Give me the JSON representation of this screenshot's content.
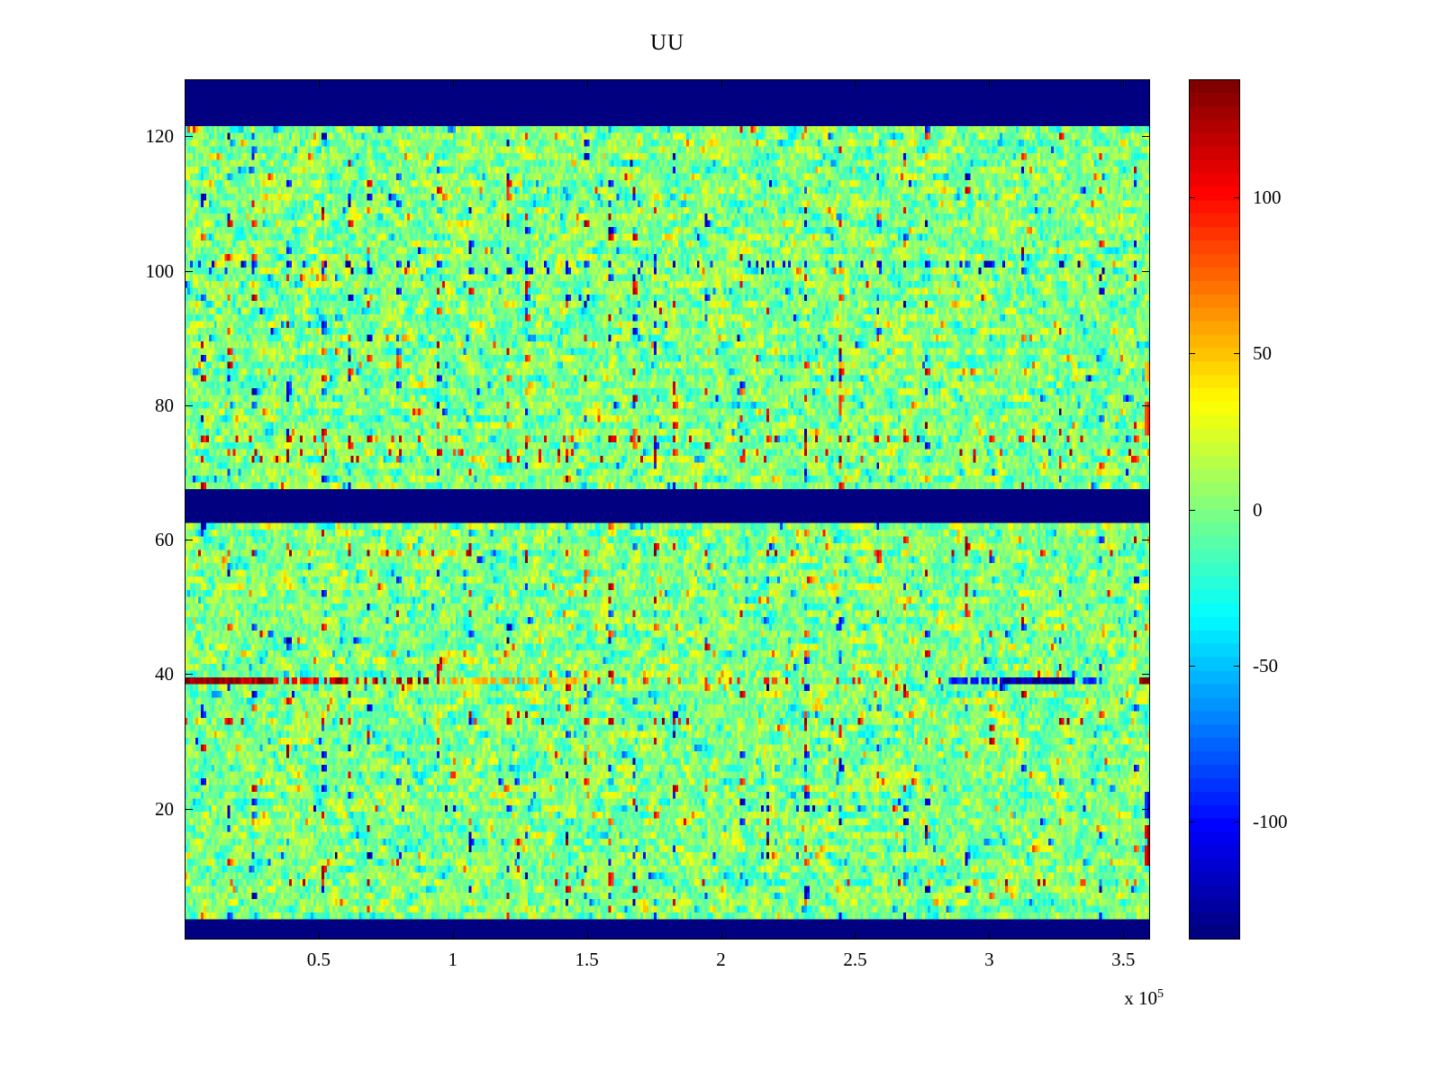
{
  "chart_data": {
    "type": "heatmap",
    "title": "UU",
    "x_axis": {
      "lim": [
        0,
        360000
      ],
      "ticks": [
        {
          "value": 50000,
          "label": "0.5"
        },
        {
          "value": 100000,
          "label": "1"
        },
        {
          "value": 150000,
          "label": "1.5"
        },
        {
          "value": 200000,
          "label": "2"
        },
        {
          "value": 250000,
          "label": "2.5"
        },
        {
          "value": 300000,
          "label": "3"
        },
        {
          "value": 350000,
          "label": "3.5"
        }
      ],
      "multiplier_prefix": "x 10",
      "multiplier_exponent": "5"
    },
    "y_axis": {
      "lim": [
        0.5,
        128.5
      ],
      "ticks": [
        {
          "value": 20,
          "label": "20"
        },
        {
          "value": 40,
          "label": "40"
        },
        {
          "value": 60,
          "label": "60"
        },
        {
          "value": 80,
          "label": "80"
        },
        {
          "value": 100,
          "label": "100"
        },
        {
          "value": 120,
          "label": "120"
        }
      ]
    },
    "colorbar": {
      "lim": [
        -138,
        138
      ],
      "levels": 64,
      "colormap": "jet",
      "ticks": [
        {
          "value": 100,
          "label": "100"
        },
        {
          "value": 50,
          "label": "50"
        },
        {
          "value": 0,
          "label": "0"
        },
        {
          "value": -50,
          "label": "-50"
        },
        {
          "value": -100,
          "label": "-100"
        }
      ]
    },
    "grid": {
      "ncols": 360,
      "nrows": 128
    },
    "generation": {
      "seed": 20240615,
      "noise_std": 15,
      "noise_spike_prob": 0.06,
      "noise_spike_scale": 2.8,
      "h_corr": 0.45,
      "streaks": {
        "start": 6,
        "spacing": 11,
        "jitter": 4,
        "dash_prob": 0.14,
        "mag_min": 75,
        "mag_max": 138
      },
      "dash_rows": [
        {
          "row": 75,
          "sign": 1,
          "prob": 0.5
        },
        {
          "row": 73,
          "sign": 1,
          "prob": 0.35
        },
        {
          "row": 72,
          "sign": 1,
          "prob": 0.3
        },
        {
          "row": 101,
          "sign": -1,
          "prob": 0.5
        },
        {
          "row": 100,
          "sign": -1,
          "prob": 0.25
        },
        {
          "row": 58,
          "sign": 1,
          "prob": 0.3
        },
        {
          "row": 33,
          "sign": 1,
          "prob": 0.25
        },
        {
          "row": 20,
          "sign": -1,
          "prob": 0.25
        },
        {
          "row": 13,
          "sign": -1,
          "prob": 0.2
        },
        {
          "row": 9,
          "sign": 1,
          "prob": 0.2
        }
      ],
      "bands": [
        {
          "row_min": 1,
          "row_max": 3
        },
        {
          "row_min": 63,
          "row_max": 67
        },
        {
          "row_min": 122,
          "row_max": 128
        }
      ],
      "band_value": -138,
      "row_stripe": {
        "row": 39,
        "segments": [
          {
            "col_min": 0,
            "col_max": 33,
            "value": 128,
            "density": 1
          },
          {
            "col_min": 33,
            "col_max": 52,
            "value": 105,
            "density": 0.7
          },
          {
            "col_min": 52,
            "col_max": 95,
            "value": 118,
            "density": 0.5
          },
          {
            "col_min": 95,
            "col_max": 150,
            "value": 55,
            "density": 0.45
          },
          {
            "col_min": 150,
            "col_max": 285,
            "value": 85,
            "density": 0.12
          },
          {
            "col_min": 285,
            "col_max": 305,
            "value": -95,
            "density": 0.8
          },
          {
            "col_min": 305,
            "col_max": 332,
            "value": -132,
            "density": 1
          },
          {
            "col_min": 332,
            "col_max": 342,
            "value": -85,
            "density": 0.7
          },
          {
            "col_min": 356,
            "col_max": 360,
            "value": 132,
            "density": 1
          }
        ]
      },
      "edge_spots": [
        {
          "row_min": 12,
          "row_max": 17,
          "value": 126
        },
        {
          "row_min": 19,
          "row_max": 22,
          "value": -105
        },
        {
          "row_min": 76,
          "row_max": 80,
          "value": 92
        },
        {
          "row_min": 84,
          "row_max": 86,
          "value": 60
        }
      ]
    }
  }
}
